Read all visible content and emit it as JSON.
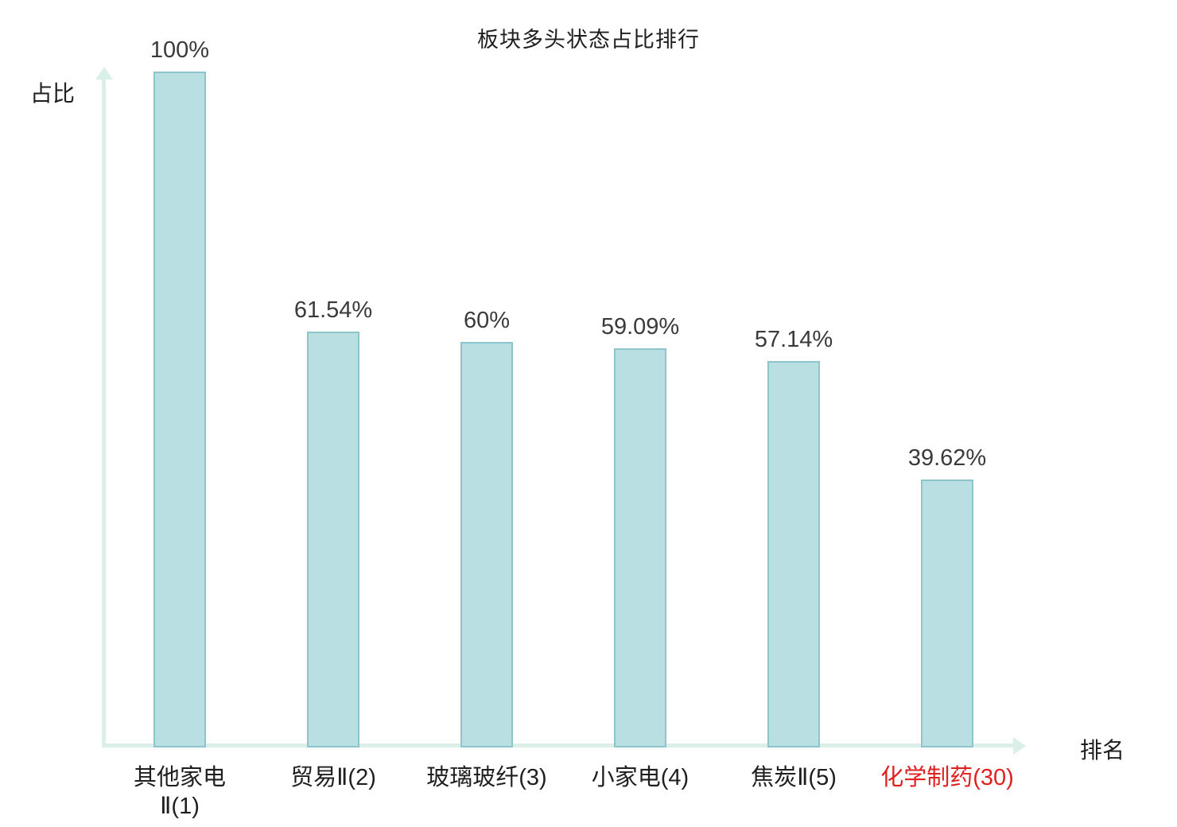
{
  "title": "板块多头状态占比排行",
  "axes": {
    "y_label": "占比",
    "x_label": "排名"
  },
  "chart_data": {
    "type": "bar",
    "title": "板块多头状态占比排行",
    "xlabel": "排名",
    "ylabel": "占比",
    "ylim": [
      0,
      100
    ],
    "grid": false,
    "legend": "none",
    "categories": [
      "其他家电\nⅡ(1)",
      "贸易Ⅱ(2)",
      "玻璃玻纤(3)",
      "小家电(4)",
      "焦炭Ⅱ(5)",
      "化学制药(30)"
    ],
    "values": [
      100,
      61.54,
      60,
      59.09,
      57.14,
      39.62
    ],
    "value_labels": [
      "100%",
      "61.54%",
      "60%",
      "59.09%",
      "57.14%",
      "39.62%"
    ],
    "highlight_index": 5,
    "colors": {
      "bar_fill": "#b9dfe3",
      "bar_border": "#8dc5cc",
      "axis": "#d9efe7",
      "value_label": "#3a3a3a",
      "category_label": "#1f1f1f",
      "highlight_label": "#e01f1f"
    }
  }
}
